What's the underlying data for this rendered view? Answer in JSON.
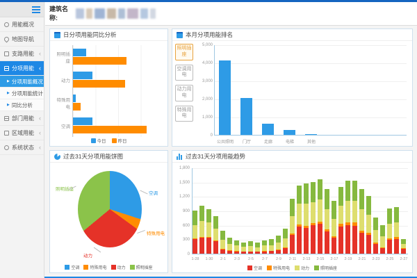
{
  "colors": {
    "topbar": "#1565c0",
    "accent_blue": "#1e88e5",
    "bar_blue": "#2e9be6",
    "bar_orange": "#ff8c00",
    "pie_red": "#e53228",
    "pie_green": "#8bc34a",
    "trend_yellow": "#dede6e",
    "trend_green": "#86b93f",
    "active_button_orange": "#e8a23d"
  },
  "header": {
    "building_label": "建筑名称:"
  },
  "sidebar": {
    "hamburger": "menu-icon",
    "items": [
      {
        "label": "用能概况",
        "icon": "gauge-icon",
        "active": false,
        "chevron": false
      },
      {
        "label": "地图导航",
        "icon": "map-pin-icon",
        "active": false,
        "chevron": false
      },
      {
        "label": "支路用能",
        "icon": "branch-icon",
        "active": false,
        "chevron": true
      },
      {
        "label": "分项用能",
        "icon": "category-icon",
        "active": true,
        "chevron": true
      },
      {
        "label": "部门用能",
        "icon": "department-icon",
        "active": false,
        "chevron": true
      },
      {
        "label": "区域用能",
        "icon": "region-icon",
        "active": false,
        "chevron": true
      },
      {
        "label": "系统状态",
        "icon": "status-icon",
        "active": false,
        "chevron": true
      }
    ],
    "submenu_parent_index": 3,
    "submenu": [
      {
        "label": "分项用能概况",
        "active": true
      },
      {
        "label": "分项用能统计",
        "active": false
      },
      {
        "label": "同比分析",
        "active": false
      }
    ],
    "chevron_glyph": "‹",
    "sub_arrow_glyph": "▶"
  },
  "ranking_buttons": [
    {
      "label": "照明插座",
      "active": true
    },
    {
      "label": "空调用电",
      "active": false
    },
    {
      "label": "动力用电",
      "active": false
    },
    {
      "label": "特殊用电",
      "active": false
    }
  ],
  "chart_data": [
    {
      "id": "daily",
      "type": "bar",
      "orientation": "horizontal",
      "title": "日分项用能同比分析",
      "categories": [
        "照明插座",
        "动力",
        "特殊用电",
        "空调"
      ],
      "series": [
        {
          "name": "今日",
          "color": "#2e9be6",
          "values": [
            62,
            92,
            13,
            92
          ]
        },
        {
          "name": "昨日",
          "color": "#ff8c00",
          "values": [
            255,
            248,
            36,
            352
          ]
        }
      ],
      "xlim": [
        0,
        430
      ],
      "legend_position": "bottom",
      "grid": true
    },
    {
      "id": "ranking",
      "type": "bar",
      "title": "本月分项用能排名",
      "categories": [
        "公共照明",
        "门厅",
        "走廊",
        "电梯",
        "其他"
      ],
      "values": [
        4100,
        2050,
        620,
        280,
        30
      ],
      "bar_color": "#2e9be6",
      "ylim": [
        0,
        5000
      ],
      "yticks": [
        "5,000",
        "4,000",
        "3,000",
        "2,000",
        "1,000",
        "0"
      ],
      "grid": true
    },
    {
      "id": "pie",
      "type": "pie",
      "title": "过去31天分项用能饼图",
      "slices": [
        {
          "label": "空调",
          "pct": 30,
          "color": "#2e9be6"
        },
        {
          "label": "特殊用电",
          "pct": 5,
          "color": "#ff8c00"
        },
        {
          "label": "动力",
          "pct": 29,
          "color": "#e53228"
        },
        {
          "label": "照明插座",
          "pct": 36,
          "color": "#8bc34a"
        }
      ],
      "legend_position": "bottom"
    },
    {
      "id": "trend",
      "type": "bar",
      "stacked": true,
      "title": "过去31天分项用能趋势",
      "categories": [
        "1-28",
        "1-29",
        "1-30",
        "1-31",
        "2-1",
        "2-2",
        "2-3",
        "2-4",
        "2-5",
        "2-6",
        "2-7",
        "2-8",
        "2-9",
        "2-10",
        "2-11",
        "2-12",
        "2-13",
        "2-14",
        "2-15",
        "2-16",
        "2-17",
        "2-18",
        "2-19",
        "2-20",
        "2-21",
        "2-22",
        "2-23",
        "2-24",
        "2-25",
        "2-26",
        "2-27"
      ],
      "xlabel_every": 2,
      "series": [
        {
          "name": "空调",
          "color": "#e53228",
          "values": [
            300,
            330,
            340,
            260,
            90,
            60,
            50,
            40,
            45,
            40,
            50,
            55,
            80,
            110,
            390,
            560,
            540,
            590,
            620,
            470,
            330,
            560,
            590,
            580,
            440,
            390,
            210,
            120,
            290,
            310,
            100
          ]
        },
        {
          "name": "特殊用电",
          "color": "#ff8c00",
          "values": [
            15,
            20,
            15,
            15,
            10,
            8,
            6,
            5,
            6,
            5,
            6,
            7,
            10,
            15,
            30,
            50,
            45,
            50,
            55,
            40,
            30,
            60,
            70,
            70,
            45,
            40,
            20,
            15,
            30,
            35,
            10
          ]
        },
        {
          "name": "动力",
          "color": "#dede6e",
          "values": [
            285,
            330,
            295,
            255,
            190,
            132,
            114,
            95,
            104,
            93,
            114,
            118,
            140,
            195,
            365,
            430,
            465,
            440,
            455,
            420,
            360,
            380,
            440,
            450,
            445,
            390,
            260,
            235,
            310,
            315,
            95
          ]
        },
        {
          "name": "照明插座",
          "color": "#86b93f",
          "values": [
            300,
            320,
            280,
            260,
            190,
            130,
            110,
            100,
            105,
            92,
            110,
            120,
            150,
            200,
            365,
            380,
            420,
            420,
            420,
            420,
            380,
            400,
            420,
            420,
            420,
            380,
            260,
            230,
            320,
            320,
            95
          ]
        }
      ],
      "ylim": [
        0,
        1800
      ],
      "yticks": [
        "1,800",
        "1,500",
        "1,200",
        "900",
        "600",
        "300",
        "0"
      ],
      "legend_position": "bottom",
      "grid": true
    }
  ]
}
